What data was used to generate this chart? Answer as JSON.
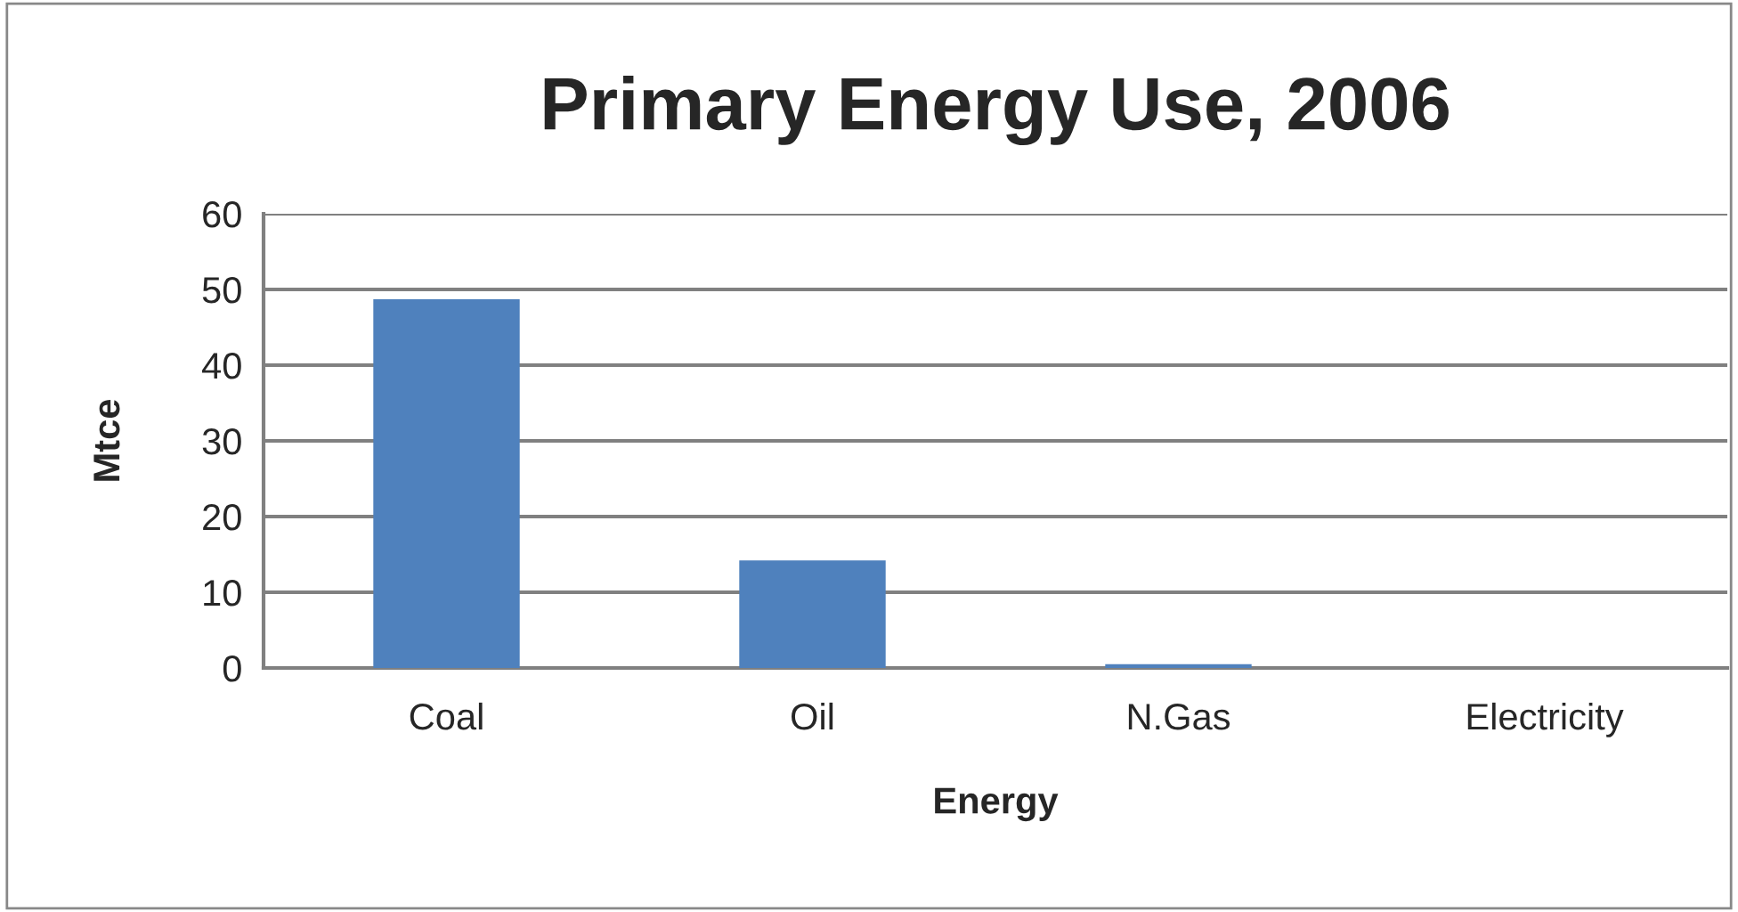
{
  "chart_data": {
    "type": "bar",
    "title": "Primary Energy Use, 2006",
    "xlabel": "Energy",
    "ylabel": "Mtce",
    "categories": [
      "Coal",
      "Oil",
      "N.Gas",
      "Electricity"
    ],
    "values": [
      48.7,
      14.2,
      0.5,
      0
    ],
    "color": "#4f81bd",
    "ylim": [
      0,
      60
    ],
    "yticks": [
      0,
      10,
      20,
      30,
      40,
      50,
      60
    ],
    "grid": "y",
    "legend": false
  }
}
